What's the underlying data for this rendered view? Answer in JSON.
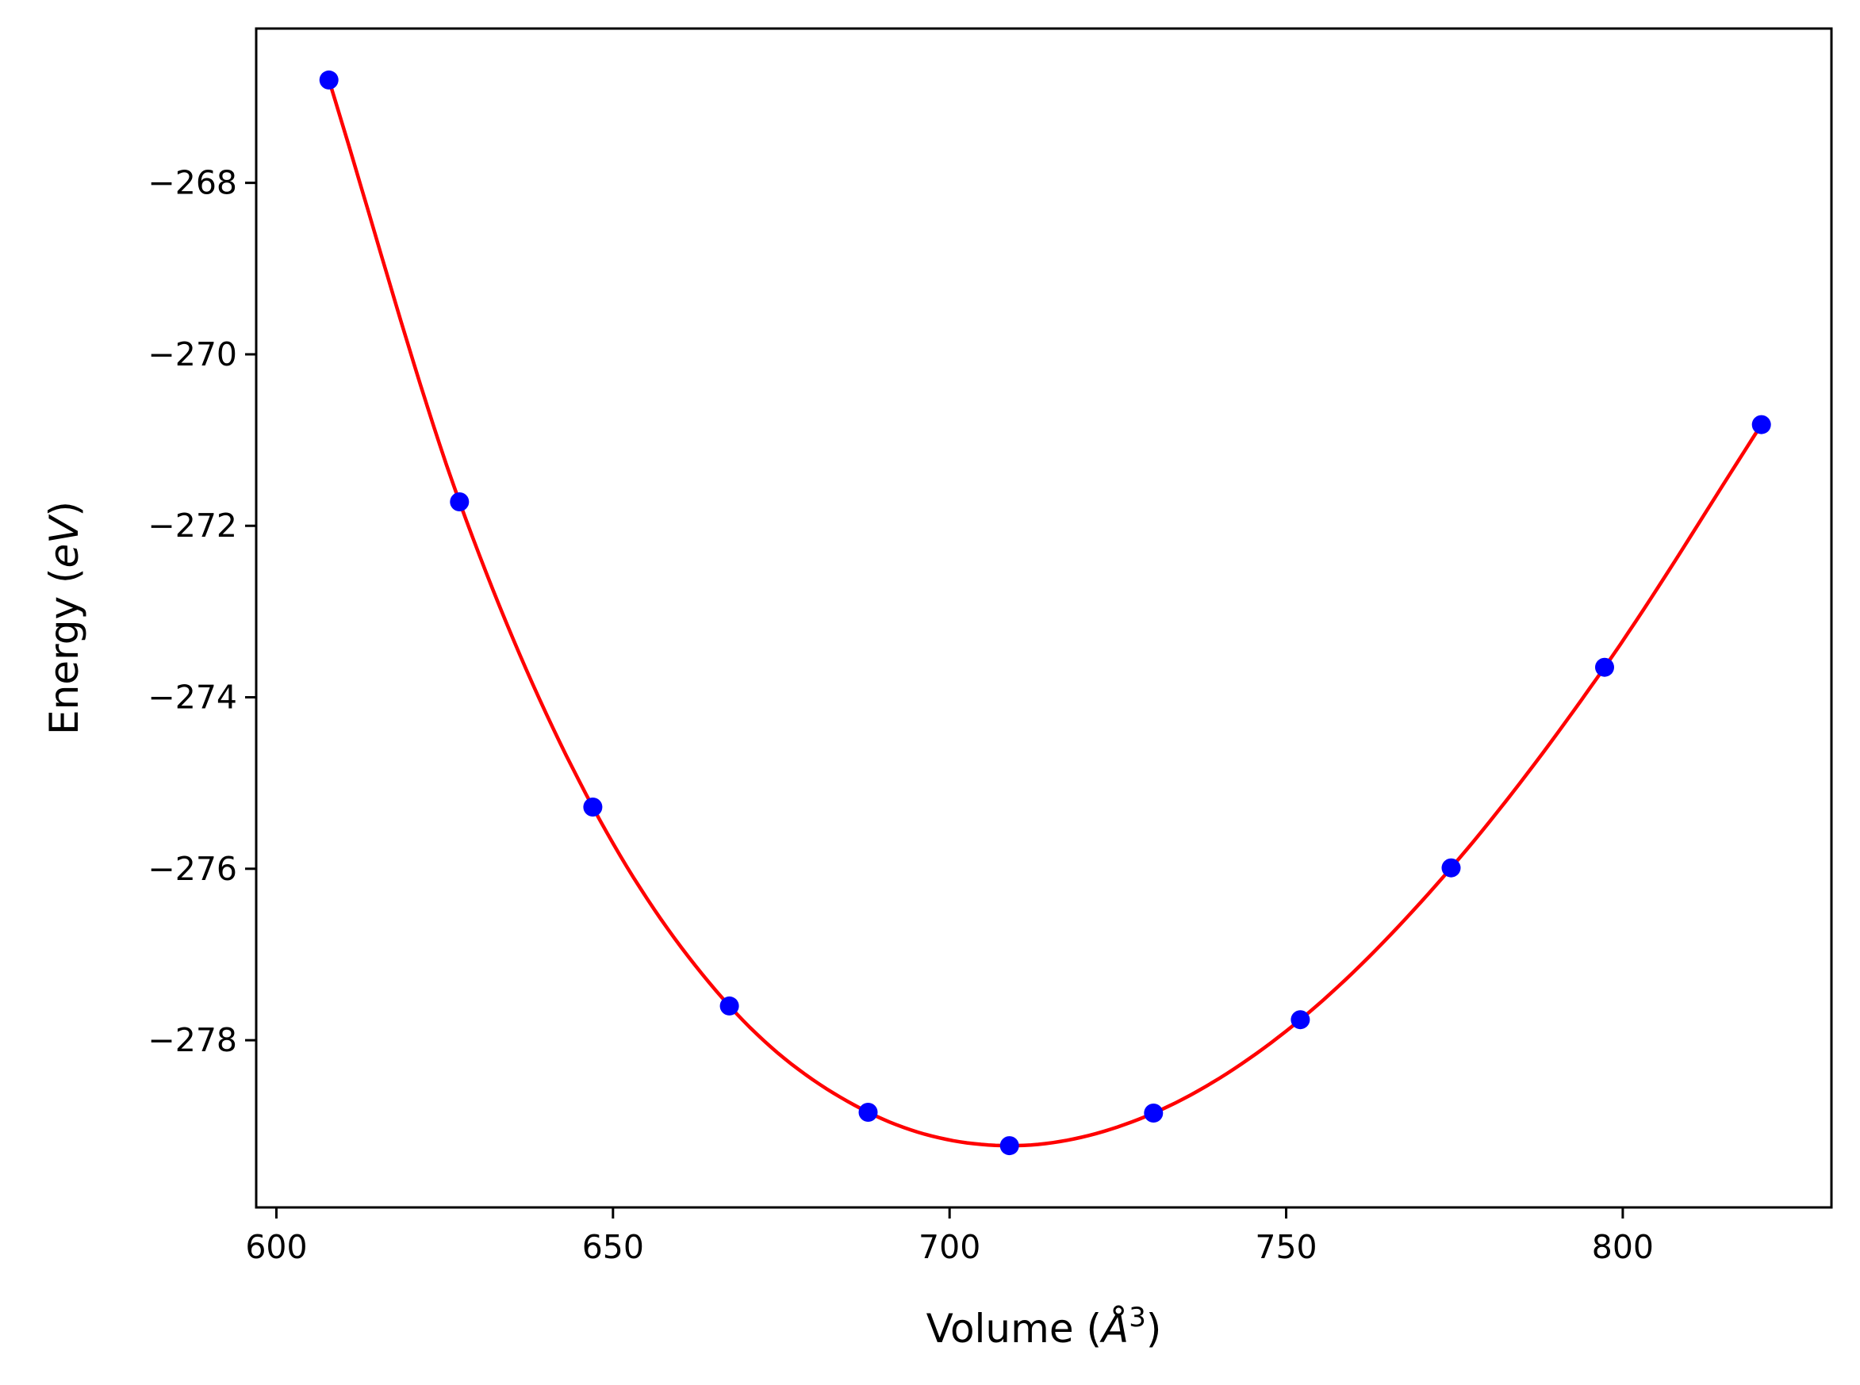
{
  "chart_data": {
    "type": "scatter",
    "title": "",
    "xlabel": "Volume (",
    "xlabel_unit": "Å",
    "xlabel_exponent": "3",
    "xlabel_suffix": ")",
    "ylabel": "Energy (",
    "ylabel_unit": "eV",
    "ylabel_suffix": ")",
    "xlim": [
      597,
      831
    ],
    "ylim": [
      -279.95,
      -266.2
    ],
    "xticks": [
      600,
      650,
      700,
      750,
      800
    ],
    "xtick_labels": [
      "600",
      "650",
      "700",
      "750",
      "800"
    ],
    "yticks": [
      -268,
      -270,
      -272,
      -274,
      -276,
      -278
    ],
    "ytick_labels": [
      "−268",
      "−270",
      "−272",
      "−274",
      "−276",
      "−278"
    ],
    "grid": false,
    "series": [
      {
        "kind": "points",
        "color": "#0000ff",
        "x": [
          607.8,
          627.2,
          647.0,
          667.3,
          687.9,
          708.9,
          730.3,
          752.1,
          774.5,
          797.3,
          820.6
        ],
        "y": [
          -266.8,
          -271.72,
          -275.28,
          -277.6,
          -278.84,
          -279.23,
          -278.85,
          -277.76,
          -275.99,
          -273.65,
          -270.82
        ]
      },
      {
        "kind": "fit-line",
        "color": "#ff0000",
        "x": [
          607.8,
          627.2,
          647.0,
          667.3,
          687.9,
          708.9,
          730.3,
          752.1,
          774.5,
          797.3,
          820.6
        ],
        "y": [
          -266.8,
          -271.72,
          -275.28,
          -277.6,
          -278.84,
          -279.23,
          -278.85,
          -277.76,
          -275.99,
          -273.65,
          -270.82
        ]
      }
    ]
  },
  "colors": {
    "axis": "#000000",
    "points": "#0000ff",
    "fit": "#ff0000",
    "background": "#ffffff"
  }
}
